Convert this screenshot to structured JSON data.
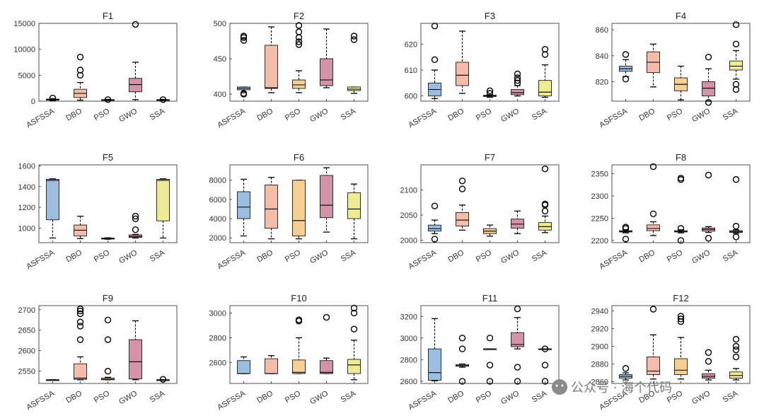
{
  "categories": [
    "ASFSSA",
    "DBO",
    "PSO",
    "GWO",
    "SSA"
  ],
  "colors": [
    "#9dbde0",
    "#f5bcac",
    "#f6cf93",
    "#d592ab",
    "#eeeb96"
  ],
  "watermark": "公众号 · 海个代码",
  "chart_data": [
    {
      "type": "box",
      "title": "F1",
      "ylim": [
        0,
        15000
      ],
      "yticks": [
        0,
        5000,
        10000,
        15000
      ],
      "boxes": [
        {
          "label": "ASFSSA",
          "q1": 200,
          "med": 300,
          "q3": 400,
          "wlo": 100,
          "whi": 500,
          "out": [
            600
          ]
        },
        {
          "label": "DBO",
          "q1": 700,
          "med": 1500,
          "q3": 2300,
          "wlo": 200,
          "whi": 3600,
          "out": [
            5000,
            6000,
            8500
          ]
        },
        {
          "label": "PSO",
          "q1": 150,
          "med": 250,
          "q3": 300,
          "wlo": 100,
          "whi": 350,
          "out": [
            300
          ]
        },
        {
          "label": "GWO",
          "q1": 1800,
          "med": 3200,
          "q3": 4400,
          "wlo": 300,
          "whi": 7500,
          "out": [
            14800
          ]
        },
        {
          "label": "SSA",
          "q1": 150,
          "med": 250,
          "q3": 300,
          "wlo": 100,
          "whi": 350,
          "out": [
            300
          ]
        }
      ]
    },
    {
      "type": "box",
      "title": "F2",
      "ylim": [
        390,
        500
      ],
      "yticks": [
        400,
        450,
        500
      ],
      "boxes": [
        {
          "label": "ASFSSA",
          "q1": 406,
          "med": 408,
          "q3": 410,
          "wlo": 402,
          "whi": 410,
          "out": [
            400,
            401,
            476,
            480,
            482
          ]
        },
        {
          "label": "DBO",
          "q1": 408,
          "med": 409,
          "q3": 469,
          "wlo": 402,
          "whi": 495,
          "out": []
        },
        {
          "label": "PSO",
          "q1": 408,
          "med": 413,
          "q3": 420,
          "wlo": 402,
          "whi": 433,
          "out": [
            470,
            474,
            480,
            488,
            497
          ]
        },
        {
          "label": "GWO",
          "q1": 412,
          "med": 420,
          "q3": 450,
          "wlo": 409,
          "whi": 492,
          "out": []
        },
        {
          "label": "SSA",
          "q1": 405,
          "med": 407,
          "q3": 410,
          "wlo": 401,
          "whi": 410,
          "out": [
            477,
            482
          ]
        }
      ]
    },
    {
      "type": "box",
      "title": "F3",
      "ylim": [
        598,
        628
      ],
      "yticks": [
        600,
        610,
        620
      ],
      "boxes": [
        {
          "label": "ASFSSA",
          "q1": 600,
          "med": 602.5,
          "q3": 605,
          "wlo": 599,
          "whi": 610,
          "out": [
            614,
            627
          ]
        },
        {
          "label": "DBO",
          "q1": 604,
          "med": 608,
          "q3": 613,
          "wlo": 601,
          "whi": 625,
          "out": []
        },
        {
          "label": "PSO",
          "q1": 599.8,
          "med": 600,
          "q3": 600.3,
          "wlo": 599.5,
          "whi": 600.5,
          "out": [
            601,
            602
          ]
        },
        {
          "label": "GWO",
          "q1": 600.5,
          "med": 601.3,
          "q3": 602.5,
          "wlo": 600,
          "whi": 604,
          "out": [
            605,
            606,
            607,
            608.5
          ]
        },
        {
          "label": "SSA",
          "q1": 600,
          "med": 601.5,
          "q3": 606,
          "wlo": 599.5,
          "whi": 612,
          "out": [
            616,
            618
          ]
        }
      ]
    },
    {
      "type": "box",
      "title": "F4",
      "ylim": [
        805,
        865
      ],
      "yticks": [
        820,
        840,
        860
      ],
      "boxes": [
        {
          "label": "ASFSSA",
          "q1": 828,
          "med": 830,
          "q3": 832,
          "wlo": 824,
          "whi": 837,
          "out": [
            822,
            841
          ]
        },
        {
          "label": "DBO",
          "q1": 827,
          "med": 835,
          "q3": 843,
          "wlo": 816,
          "whi": 849,
          "out": []
        },
        {
          "label": "PSO",
          "q1": 813,
          "med": 818,
          "q3": 823,
          "wlo": 806,
          "whi": 832,
          "out": []
        },
        {
          "label": "GWO",
          "q1": 809,
          "med": 815,
          "q3": 820,
          "wlo": 805,
          "whi": 830,
          "out": [
            804,
            839
          ]
        },
        {
          "label": "SSA",
          "q1": 829,
          "med": 832,
          "q3": 836,
          "wlo": 822,
          "whi": 844,
          "out": [
            814,
            818,
            849,
            864
          ]
        }
      ]
    },
    {
      "type": "box",
      "title": "F5",
      "ylim": [
        860,
        1610
      ],
      "yticks": [
        1000,
        1200,
        1400,
        1600
      ],
      "boxes": [
        {
          "label": "ASFSSA",
          "q1": 1080,
          "med": 1460,
          "q3": 1470,
          "wlo": 905,
          "whi": 1475,
          "out": []
        },
        {
          "label": "DBO",
          "q1": 925,
          "med": 980,
          "q3": 1030,
          "wlo": 900,
          "whi": 1115,
          "out": []
        },
        {
          "label": "PSO",
          "q1": 895,
          "med": 900,
          "q3": 905,
          "wlo": 893,
          "whi": 907,
          "out": []
        },
        {
          "label": "GWO",
          "q1": 910,
          "med": 920,
          "q3": 935,
          "wlo": 905,
          "whi": 940,
          "out": [
            985,
            1090,
            1115
          ]
        },
        {
          "label": "SSA",
          "q1": 1070,
          "med": 1460,
          "q3": 1470,
          "wlo": 905,
          "whi": 1475,
          "out": []
        }
      ]
    },
    {
      "type": "box",
      "title": "F6",
      "ylim": [
        1500,
        9600
      ],
      "yticks": [
        2000,
        4000,
        6000,
        8000
      ],
      "boxes": [
        {
          "label": "ASFSSA",
          "q1": 4000,
          "med": 5200,
          "q3": 6800,
          "wlo": 2200,
          "whi": 8100,
          "out": []
        },
        {
          "label": "DBO",
          "q1": 3000,
          "med": 5000,
          "q3": 7500,
          "wlo": 1900,
          "whi": 8300,
          "out": []
        },
        {
          "label": "PSO",
          "q1": 2200,
          "med": 3800,
          "q3": 8000,
          "wlo": 1900,
          "whi": 8000,
          "out": []
        },
        {
          "label": "GWO",
          "q1": 4100,
          "med": 5400,
          "q3": 8500,
          "wlo": 2600,
          "whi": 9300,
          "out": []
        },
        {
          "label": "SSA",
          "q1": 4000,
          "med": 5000,
          "q3": 6700,
          "wlo": 1900,
          "whi": 7600,
          "out": []
        }
      ]
    },
    {
      "type": "box",
      "title": "F7",
      "ylim": [
        1995,
        2150
      ],
      "yticks": [
        2000,
        2050,
        2100
      ],
      "boxes": [
        {
          "label": "ASFSSA",
          "q1": 2018,
          "med": 2023,
          "q3": 2030,
          "wlo": 2013,
          "whi": 2040,
          "out": [
            2002,
            2068
          ]
        },
        {
          "label": "DBO",
          "q1": 2028,
          "med": 2040,
          "q3": 2055,
          "wlo": 2020,
          "whi": 2070,
          "out": [
            2102,
            2118
          ]
        },
        {
          "label": "PSO",
          "q1": 2013,
          "med": 2018,
          "q3": 2023,
          "wlo": 2008,
          "whi": 2030,
          "out": []
        },
        {
          "label": "GWO",
          "q1": 2024,
          "med": 2032,
          "q3": 2042,
          "wlo": 2013,
          "whi": 2058,
          "out": []
        },
        {
          "label": "SSA",
          "q1": 2020,
          "med": 2027,
          "q3": 2035,
          "wlo": 2015,
          "whi": 2048,
          "out": [
            2058,
            2070,
            2072,
            2142
          ]
        }
      ]
    },
    {
      "type": "box",
      "title": "F8",
      "ylim": [
        2195,
        2370
      ],
      "yticks": [
        2200,
        2250,
        2300,
        2350
      ],
      "boxes": [
        {
          "label": "ASFSSA",
          "q1": 2219,
          "med": 2220,
          "q3": 2222,
          "wlo": 2217,
          "whi": 2224,
          "out": [
            2203,
            2227,
            2230
          ]
        },
        {
          "label": "DBO",
          "q1": 2222,
          "med": 2227,
          "q3": 2235,
          "wlo": 2211,
          "whi": 2242,
          "out": [
            2260,
            2366
          ]
        },
        {
          "label": "PSO",
          "q1": 2219,
          "med": 2220,
          "q3": 2222,
          "wlo": 2217,
          "whi": 2224,
          "out": [
            2200,
            2227,
            2337,
            2340
          ]
        },
        {
          "label": "GWO",
          "q1": 2221,
          "med": 2225,
          "q3": 2228,
          "wlo": 2218,
          "whi": 2231,
          "out": [
            2205,
            2347
          ]
        },
        {
          "label": "SSA",
          "q1": 2218,
          "med": 2220,
          "q3": 2222,
          "wlo": 2216,
          "whi": 2224,
          "out": [
            2208,
            2232,
            2337
          ]
        }
      ]
    },
    {
      "type": "box",
      "title": "F9",
      "ylim": [
        2520,
        2710
      ],
      "yticks": [
        2550,
        2600,
        2650,
        2700
      ],
      "boxes": [
        {
          "label": "ASFSSA",
          "q1": 2529,
          "med": 2529,
          "q3": 2529,
          "wlo": 2529,
          "whi": 2529,
          "out": []
        },
        {
          "label": "DBO",
          "q1": 2530,
          "med": 2533,
          "q3": 2568,
          "wlo": 2529,
          "whi": 2585,
          "out": [
            2627,
            2660,
            2670,
            2690,
            2697,
            2702
          ]
        },
        {
          "label": "PSO",
          "q1": 2529,
          "med": 2530,
          "q3": 2533,
          "wlo": 2529,
          "whi": 2535,
          "out": [
            2550,
            2627,
            2675
          ]
        },
        {
          "label": "GWO",
          "q1": 2531,
          "med": 2573,
          "q3": 2627,
          "wlo": 2529,
          "whi": 2673,
          "out": []
        },
        {
          "label": "SSA",
          "q1": 2529,
          "med": 2529,
          "q3": 2529,
          "wlo": 2529,
          "whi": 2529,
          "out": [
            2530
          ]
        }
      ]
    },
    {
      "type": "box",
      "title": "F10",
      "ylim": [
        2430,
        3060
      ],
      "yticks": [
        2600,
        2800,
        3000
      ],
      "boxes": [
        {
          "label": "ASFSSA",
          "q1": 2510,
          "med": 2510,
          "q3": 2615,
          "wlo": 2510,
          "whi": 2645,
          "out": []
        },
        {
          "label": "DBO",
          "q1": 2510,
          "med": 2510,
          "q3": 2630,
          "wlo": 2510,
          "whi": 2655,
          "out": []
        },
        {
          "label": "PSO",
          "q1": 2510,
          "med": 2520,
          "q3": 2620,
          "wlo": 2510,
          "whi": 2800,
          "out": [
            2935,
            2945
          ]
        },
        {
          "label": "GWO",
          "q1": 2510,
          "med": 2520,
          "q3": 2615,
          "wlo": 2510,
          "whi": 2635,
          "out": [
            2965
          ]
        },
        {
          "label": "SSA",
          "q1": 2510,
          "med": 2580,
          "q3": 2625,
          "wlo": 2460,
          "whi": 2780,
          "out": [
            2870,
            3000,
            3040
          ]
        }
      ]
    },
    {
      "type": "box",
      "title": "F11",
      "ylim": [
        2580,
        3300
      ],
      "yticks": [
        2600,
        2800,
        3000,
        3200
      ],
      "boxes": [
        {
          "label": "ASFSSA",
          "q1": 2610,
          "med": 2680,
          "q3": 2900,
          "wlo": 2605,
          "whi": 3180,
          "out": []
        },
        {
          "label": "DBO",
          "q1": 2740,
          "med": 2745,
          "q3": 2755,
          "wlo": 2730,
          "whi": 2760,
          "out": [
            2600,
            2900,
            3000
          ]
        },
        {
          "label": "PSO",
          "q1": 2900,
          "med": 2900,
          "q3": 2900,
          "wlo": 2900,
          "whi": 2900,
          "out": [
            2600,
            2750,
            3000
          ]
        },
        {
          "label": "GWO",
          "q1": 2920,
          "med": 2940,
          "q3": 3050,
          "wlo": 2900,
          "whi": 3190,
          "out": [
            2600,
            2730,
            3270
          ]
        },
        {
          "label": "SSA",
          "q1": 2900,
          "med": 2900,
          "q3": 2900,
          "wlo": 2900,
          "whi": 2900,
          "out": [
            2600,
            2750,
            2900
          ]
        }
      ]
    },
    {
      "type": "box",
      "title": "F12",
      "ylim": [
        2858,
        2946
      ],
      "yticks": [
        2860,
        2880,
        2900,
        2920,
        2940
      ],
      "boxes": [
        {
          "label": "ASFSSA",
          "q1": 2864,
          "med": 2866,
          "q3": 2868,
          "wlo": 2862,
          "whi": 2870,
          "out": [
            2875
          ]
        },
        {
          "label": "DBO",
          "q1": 2868,
          "med": 2872,
          "q3": 2888,
          "wlo": 2863,
          "whi": 2913,
          "out": [
            2942
          ]
        },
        {
          "label": "PSO",
          "q1": 2868,
          "med": 2873,
          "q3": 2886,
          "wlo": 2863,
          "whi": 2910,
          "out": [
            2928,
            2931,
            2934
          ]
        },
        {
          "label": "GWO",
          "q1": 2864,
          "med": 2866,
          "q3": 2869,
          "wlo": 2862,
          "whi": 2873,
          "out": [
            2883,
            2893
          ]
        },
        {
          "label": "SSA",
          "q1": 2864,
          "med": 2867,
          "q3": 2871,
          "wlo": 2862,
          "whi": 2875,
          "out": [
            2888,
            2896,
            2900,
            2908
          ]
        }
      ]
    }
  ]
}
